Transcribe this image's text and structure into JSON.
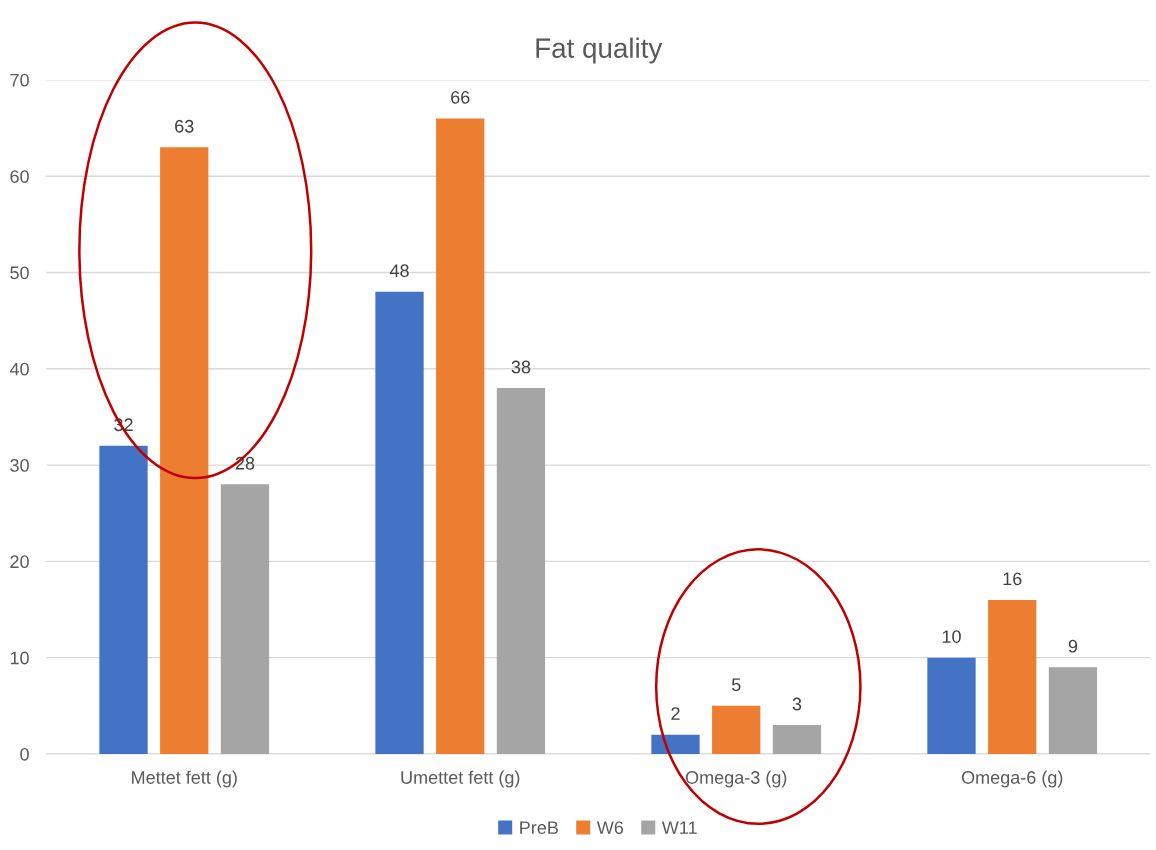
{
  "chart_data": {
    "type": "bar",
    "title": "Fat quality",
    "categories": [
      "Mettet fett (g)",
      "Umettet fett (g)",
      "Omega-3 (g)",
      "Omega-6 (g)"
    ],
    "series": [
      {
        "name": "PreB",
        "color": "#4472c4",
        "values": [
          32,
          48,
          2,
          10
        ]
      },
      {
        "name": "W6",
        "color": "#ed7d31",
        "values": [
          63,
          66,
          5,
          16
        ]
      },
      {
        "name": "W11",
        "color": "#a5a5a5",
        "values": [
          28,
          38,
          3,
          9
        ]
      }
    ],
    "ylim": [
      0,
      70
    ],
    "yticks": [
      0,
      10,
      20,
      30,
      40,
      50,
      60,
      70
    ],
    "grid": "y",
    "legend": "bottom",
    "data_labels": true
  }
}
